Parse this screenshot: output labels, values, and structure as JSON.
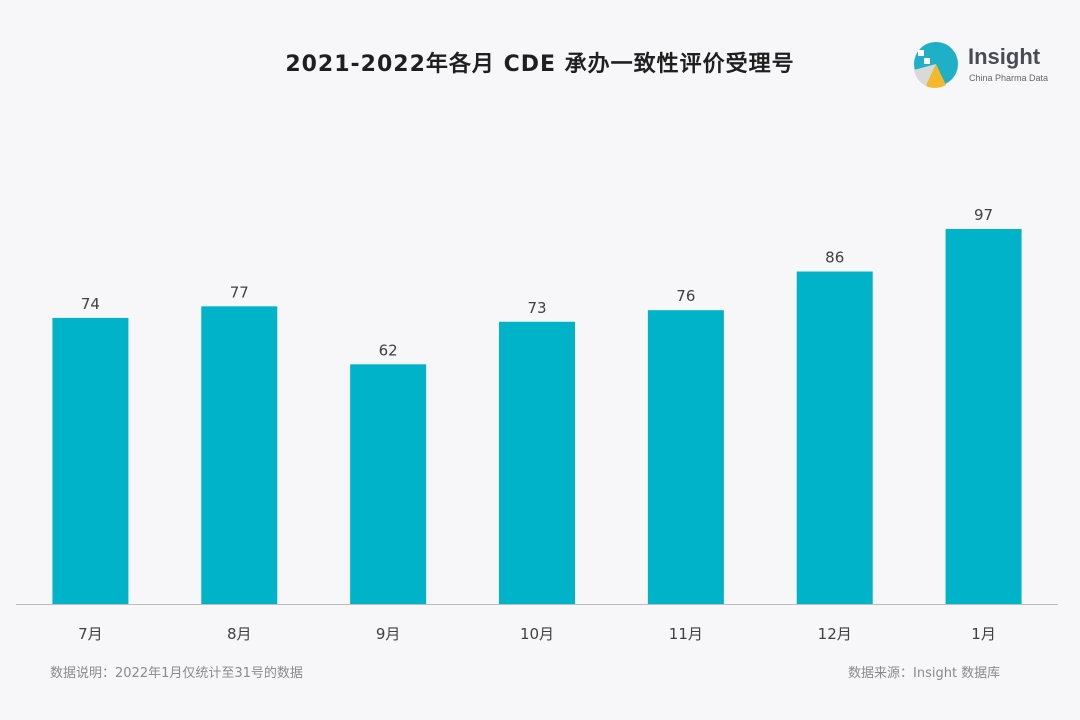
{
  "chart_data": {
    "type": "bar",
    "title": "2021-2022年各月 CDE 承办一致性评价受理号",
    "categories": [
      "7月",
      "8月",
      "9月",
      "10月",
      "11月",
      "12月",
      "1月"
    ],
    "values": [
      74,
      77,
      62,
      73,
      76,
      86,
      97
    ],
    "xlabel": "",
    "ylabel": "",
    "ylim": [
      0,
      97
    ],
    "grid": false,
    "bar_color": "#00b3c8"
  },
  "logo": {
    "name": "Insight",
    "subtitle": "China Pharma Data"
  },
  "footer": {
    "note": "数据说明：2022年1月仅统计至31号的数据",
    "source": "数据来源：Insight 数据库"
  }
}
